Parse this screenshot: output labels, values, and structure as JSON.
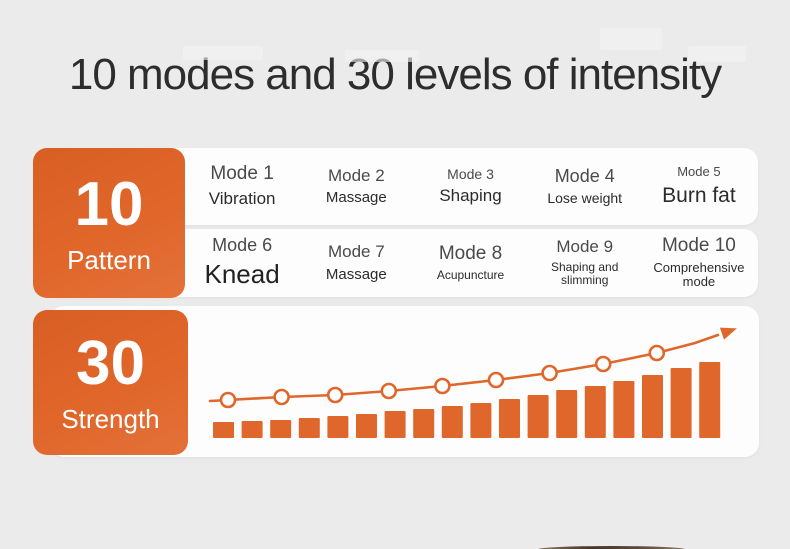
{
  "title": "10 modes and 30 levels of intensity",
  "pattern": {
    "count": "10",
    "label": "Pattern",
    "modes": [
      {
        "name": "Mode 1",
        "desc": "Vibration"
      },
      {
        "name": "Mode 2",
        "desc": "Massage"
      },
      {
        "name": "Mode 3",
        "desc": "Shaping"
      },
      {
        "name": "Mode 4",
        "desc": "Lose weight"
      },
      {
        "name": "Mode 5",
        "desc": "Burn fat"
      },
      {
        "name": "Mode 6",
        "desc": "Knead"
      },
      {
        "name": "Mode 7",
        "desc": "Massage"
      },
      {
        "name": "Mode 8",
        "desc": "Acupuncture"
      },
      {
        "name": "Mode 9",
        "desc": "Shaping and slimming"
      },
      {
        "name": "Mode 10",
        "desc": "Comprehensive mode"
      }
    ]
  },
  "strength": {
    "count": "30",
    "label": "Strength"
  },
  "colors": {
    "background": "#ebebeb",
    "card": "#fdfdfd",
    "accent_orange": "#e0672b",
    "title_text": "#2d2d2d"
  },
  "chart_data": {
    "type": "bar+line",
    "title": "",
    "xlabel": "",
    "ylabel": "",
    "axes": "none (decorative trend illustration of rising strength levels)",
    "bar_count": 18,
    "bar_relative_heights": [
      16,
      17,
      18,
      20,
      22,
      24,
      27,
      29,
      32,
      35,
      39,
      43,
      48,
      52,
      57,
      63,
      70,
      76
    ],
    "line": {
      "marker_count": 9,
      "marker_relative_heights": [
        38,
        41,
        43,
        47,
        52,
        58,
        65,
        74,
        85
      ],
      "tail_relative_heights": [
        95,
        103
      ],
      "start_relative_height": 37,
      "end_style": "arrowhead pointing up-right",
      "marker_style": "hollow circles"
    },
    "colors": {
      "bar": "#e0672b",
      "line": "#e0672b",
      "marker_fill": "#ffffff"
    }
  }
}
